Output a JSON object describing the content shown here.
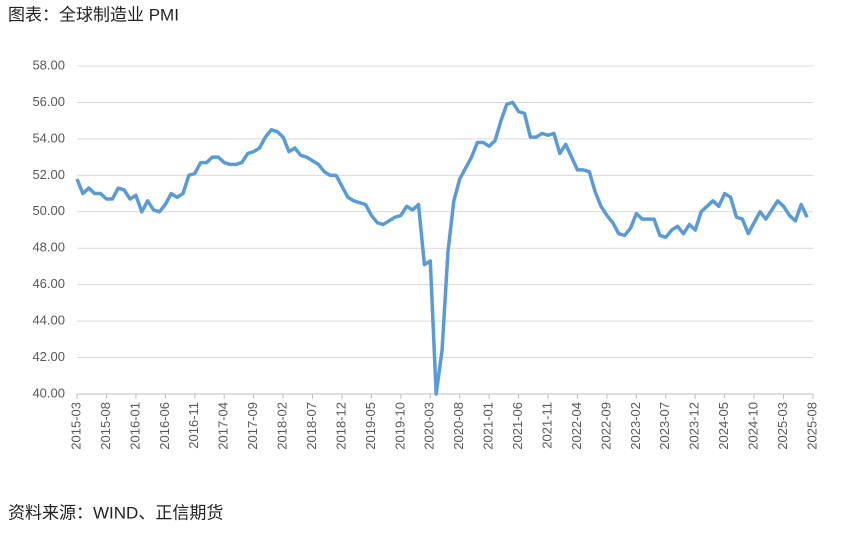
{
  "chart_data": {
    "type": "line",
    "title": "图表：全球制造业 PMI",
    "source": "资料来源：WIND、正信期货",
    "categories": [
      "2015-03",
      null,
      null,
      null,
      null,
      "2015-08",
      null,
      null,
      null,
      null,
      "2016-01",
      null,
      null,
      null,
      null,
      "2016-06",
      null,
      null,
      null,
      null,
      "2016-11",
      null,
      null,
      null,
      null,
      "2017-04",
      null,
      null,
      null,
      null,
      "2017-09",
      null,
      null,
      null,
      null,
      "2018-02",
      null,
      null,
      null,
      null,
      "2018-07",
      null,
      null,
      null,
      null,
      "2018-12",
      null,
      null,
      null,
      null,
      "2019-05",
      null,
      null,
      null,
      null,
      "2019-10",
      null,
      null,
      null,
      null,
      "2020-03",
      null,
      null,
      null,
      null,
      "2020-08",
      null,
      null,
      null,
      null,
      "2021-01",
      null,
      null,
      null,
      null,
      "2021-06",
      null,
      null,
      null,
      null,
      "2021-11",
      null,
      null,
      null,
      null,
      "2022-04",
      null,
      null,
      null,
      null,
      "2022-09",
      null,
      null,
      null,
      null,
      "2023-02",
      null,
      null,
      null,
      null,
      "2023-07",
      null,
      null,
      null,
      null,
      "2023-12",
      null,
      null,
      null,
      null,
      "2024-05",
      null,
      null,
      null,
      null,
      "2024-10",
      null,
      null,
      null,
      null,
      "2025-03",
      null,
      null,
      null,
      null,
      "2025-08"
    ],
    "series": [
      {
        "name": "全球制造业 PMI",
        "color": "#5b9bd5",
        "values": [
          51.8,
          51.0,
          51.3,
          51.0,
          51.0,
          50.7,
          50.7,
          51.3,
          51.2,
          50.7,
          50.9,
          50.0,
          50.6,
          50.1,
          50.0,
          50.4,
          51.0,
          50.8,
          51.0,
          52.0,
          52.1,
          52.7,
          52.7,
          53.0,
          53.0,
          52.7,
          52.6,
          52.6,
          52.7,
          53.2,
          53.3,
          53.5,
          54.1,
          54.5,
          54.4,
          54.1,
          53.3,
          53.5,
          53.1,
          53.0,
          52.8,
          52.6,
          52.2,
          52.0,
          52.0,
          51.4,
          50.8,
          50.6,
          50.5,
          50.4,
          49.8,
          49.4,
          49.3,
          49.5,
          49.7,
          49.8,
          50.3,
          50.1,
          50.4,
          47.1,
          47.3,
          40.0,
          42.4,
          47.8,
          50.6,
          51.8,
          52.4,
          53.0,
          53.8,
          53.8,
          53.6,
          53.9,
          55.0,
          55.9,
          56.0,
          55.5,
          55.4,
          54.1,
          54.1,
          54.3,
          54.2,
          54.3,
          53.2,
          53.7,
          53.0,
          52.3,
          52.3,
          52.2,
          51.1,
          50.3,
          49.8,
          49.4,
          48.8,
          48.7,
          49.1,
          49.9,
          49.6,
          49.6,
          49.6,
          48.7,
          48.6,
          49.0,
          49.2,
          48.8,
          49.3,
          49.0,
          50.0,
          50.3,
          50.6,
          50.3,
          51.0,
          50.8,
          49.7,
          49.6,
          48.8,
          49.4,
          50.0,
          49.6,
          50.1,
          50.6,
          50.3,
          49.8,
          49.5,
          50.4,
          49.7,
          null
        ]
      }
    ],
    "ylim": [
      40,
      58
    ],
    "yticks": [
      {
        "value": 40,
        "label": "40.00"
      },
      {
        "value": 42,
        "label": "42.00"
      },
      {
        "value": 44,
        "label": "44.00"
      },
      {
        "value": 46,
        "label": "46.00"
      },
      {
        "value": 48,
        "label": "48.00"
      },
      {
        "value": 50,
        "label": "50.00"
      },
      {
        "value": 52,
        "label": "52.00"
      },
      {
        "value": 54,
        "label": "54.00"
      },
      {
        "value": 56,
        "label": "56.00"
      },
      {
        "value": 58,
        "label": "58.00"
      }
    ],
    "grid": true
  }
}
